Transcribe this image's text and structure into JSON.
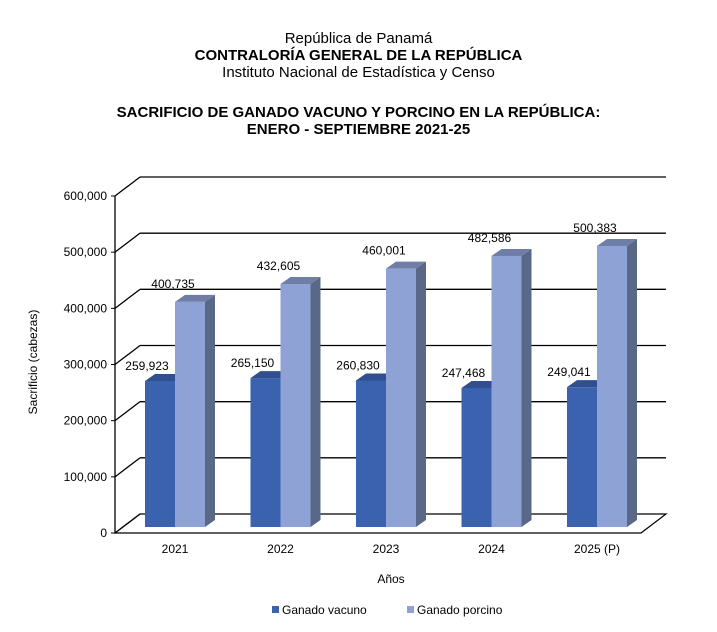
{
  "header": {
    "line1": "República de Panamá",
    "line2": "CONTRALORÍA GENERAL DE LA REPÚBLICA",
    "line3": "Instituto  Nacional de Estadística  y  Censo"
  },
  "chart_data": {
    "type": "bar",
    "title": [
      "SACRIFICIO DE GANADO VACUNO Y PORCINO EN LA REPÚBLICA:",
      "ENERO - SEPTIEMBRE 2021-25"
    ],
    "xlabel": "Años",
    "ylabel": "Sacrificio (cabezas)",
    "ylim": [
      0,
      600000
    ],
    "yticks": [
      0,
      100000,
      200000,
      300000,
      400000,
      500000,
      600000
    ],
    "ytick_labels": [
      "0",
      "100,000",
      "200,000",
      "300,000",
      "400,000",
      "500,000",
      "600,000"
    ],
    "categories": [
      "2021",
      "2022",
      "2023",
      "2024",
      "2025 (P)"
    ],
    "series": [
      {
        "name": "Ganado vacuno",
        "color": "#3a62ae",
        "values": [
          259923,
          265150,
          260830,
          247468,
          249041
        ],
        "labels": [
          "259,923",
          "265,150",
          "260,830",
          "247,468",
          "249,041"
        ]
      },
      {
        "name": "Ganado porcino",
        "color": "#8fa2d6",
        "values": [
          400735,
          432605,
          460001,
          482586,
          500383
        ],
        "labels": [
          "400,735",
          "432,605",
          "460,001",
          "482,586",
          "500,383"
        ]
      }
    ],
    "grid": true,
    "legend": "bottom"
  }
}
